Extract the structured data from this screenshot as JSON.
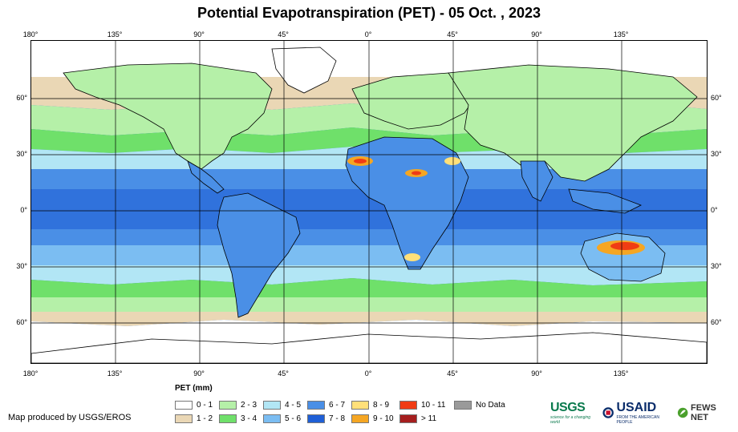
{
  "title": "Potential Evapotranspiration (PET) - 05 Oct. , 2023",
  "axes": {
    "top_ticks": [
      "180°",
      "135°",
      "90°",
      "45°",
      "0°",
      "45°",
      "90°",
      "135°"
    ],
    "bottom_ticks": [
      "180°",
      "135°",
      "90°",
      "45°",
      "0°",
      "45°",
      "90°",
      "135°"
    ],
    "left_ticks": [
      "60°",
      "30°",
      "0°",
      "30°",
      "60°"
    ],
    "right_ticks": [
      "60°",
      "30°",
      "0°",
      "30°",
      "60°"
    ]
  },
  "legend": {
    "title": "PET (mm)",
    "items": [
      {
        "label": "0 - 1",
        "color": "#ffffff"
      },
      {
        "label": "1 - 2",
        "color": "#ead7b5"
      },
      {
        "label": "2 - 3",
        "color": "#b5f0a8"
      },
      {
        "label": "3 - 4",
        "color": "#6fe06a"
      },
      {
        "label": "4 - 5",
        "color": "#b2e6f5"
      },
      {
        "label": "5 - 6",
        "color": "#7bbdf2"
      },
      {
        "label": "6 - 7",
        "color": "#4a8fe6"
      },
      {
        "label": "7 - 8",
        "color": "#1f5fd6"
      },
      {
        "label": "8 - 9",
        "color": "#ffe07a"
      },
      {
        "label": "9 - 10",
        "color": "#f5a623"
      },
      {
        "label": "10 - 11",
        "color": "#f03c14"
      },
      {
        "label": "> 11",
        "color": "#a51e1e"
      },
      {
        "label": "No Data",
        "color": "#9a9a9a"
      }
    ]
  },
  "credit": "Map produced by USGS/EROS",
  "logos": {
    "usgs": "USGS",
    "usgs_tagline": "science for a changing world",
    "usaid": "USAID",
    "usaid_tagline": "FROM THE AMERICAN PEOPLE",
    "fews": "FEWS NET"
  }
}
